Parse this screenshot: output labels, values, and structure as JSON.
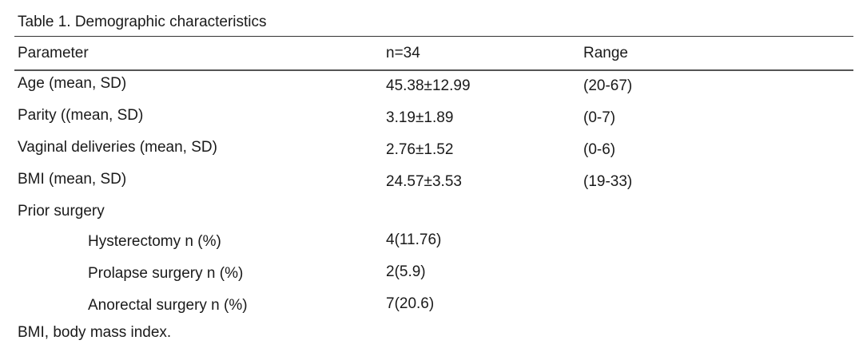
{
  "title": "Table 1. Demographic characteristics",
  "table": {
    "header": [
      "Parameter",
      "n=34",
      "Range"
    ],
    "rows": [
      [
        "Age (mean, SD)",
        "45.38±12.99",
        "(20-67)"
      ],
      [
        "Parity ((mean, SD)",
        "3.19±1.89",
        "(0-7)"
      ],
      [
        "Vaginal deliveries (mean, SD)",
        "2.76±1.52",
        "(0-6)"
      ],
      [
        "BMI (mean, SD)",
        "24.57±3.53",
        "(19-33)"
      ],
      {
        "label": "Prior surgery",
        "subrows": [
          [
            "Hysterectomy n (%)",
            "4(11.76)"
          ],
          [
            "Prolapse surgery n (%)",
            "2(5.9)"
          ],
          [
            "Anorectal surgery n (%)",
            "7(20.6)"
          ]
        ]
      }
    ]
  },
  "footnote": "BMI, body mass index."
}
